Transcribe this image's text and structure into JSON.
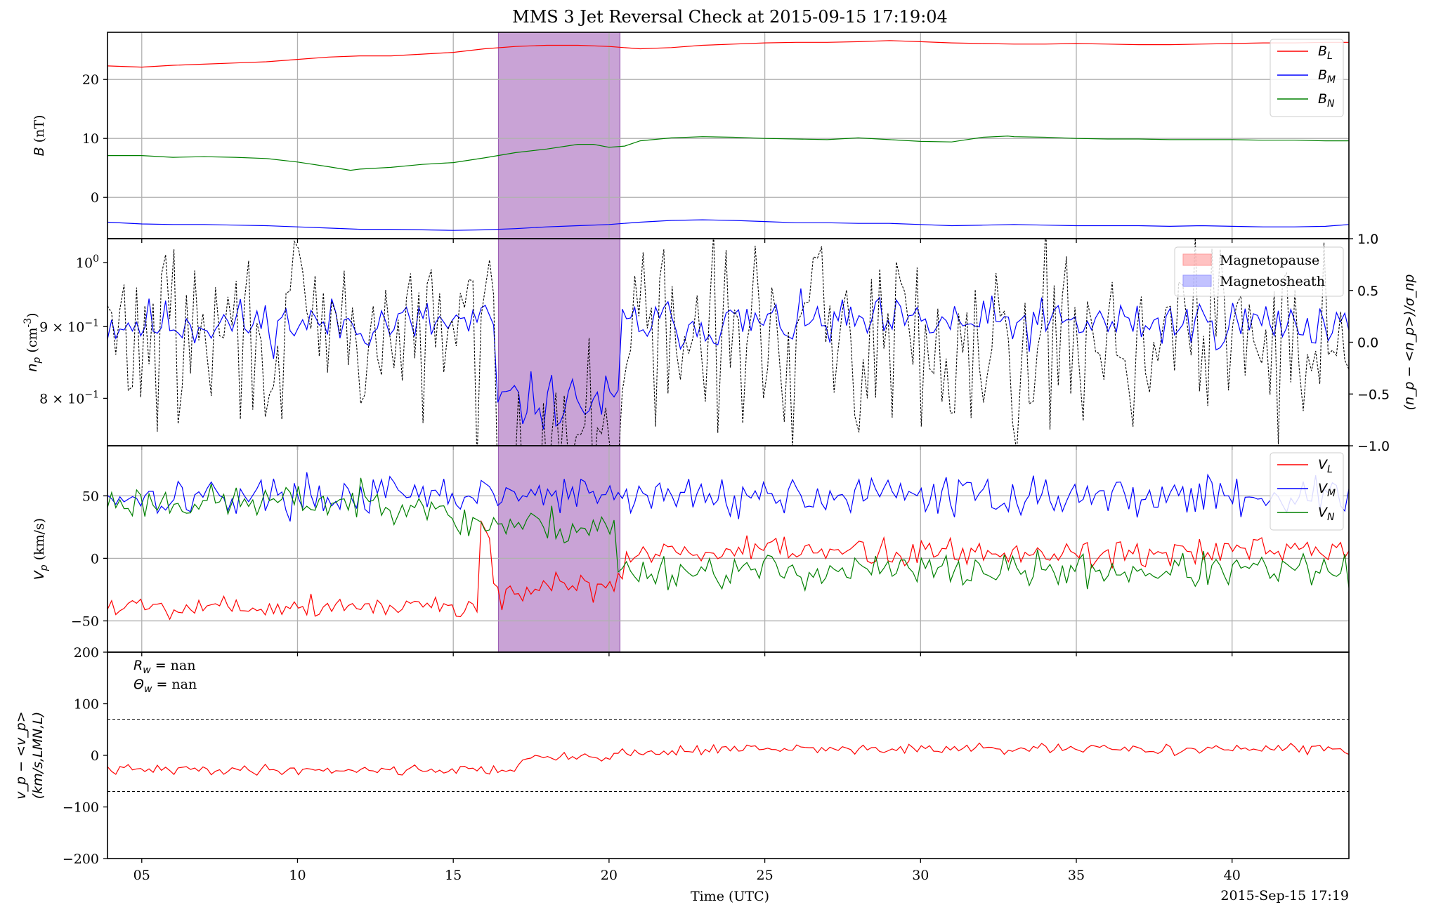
{
  "title": "MMS 3 Jet Reversal Check at 2015-09-15 17:19:04",
  "colors": {
    "red": "#ff0000",
    "blue": "#0000ff",
    "green": "#008000",
    "black": "#000000",
    "grid": "#b0b0b0",
    "span_fill": "#c9a3d6",
    "span_edge": "#9c5fb5"
  },
  "xaxis": {
    "label": "Time (UTC)",
    "tick_labels": [
      "05",
      "10",
      "15",
      "20",
      "25",
      "30",
      "35",
      "40"
    ],
    "tick_values": [
      5,
      10,
      15,
      20,
      25,
      30,
      35,
      40
    ],
    "range_seconds": [
      3.9,
      43.75
    ],
    "offset_label": "2015-Sep-15 17:19"
  },
  "highlight_span": {
    "start_seconds": 16.45,
    "end_seconds": 20.35
  },
  "chart_data": [
    {
      "type": "line",
      "panel": "B",
      "ylabel_sym": "B",
      "ylabel_unit": " (nT)",
      "ylim": [
        -7,
        28
      ],
      "yticks": [
        0,
        10,
        20
      ],
      "ytick_labels": [
        "0",
        "10",
        "20"
      ],
      "grid": true,
      "legend_placement": "upper right",
      "series": [
        {
          "name": "B_L",
          "label_main": "B",
          "label_sub": "L",
          "color": "#ff0000",
          "x": [
            3.9,
            5,
            6,
            7,
            8,
            9,
            10,
            11,
            12,
            13,
            14,
            15,
            16,
            17,
            18,
            19,
            20,
            21,
            22,
            23,
            24,
            25,
            26,
            27,
            28,
            29,
            30,
            31,
            32,
            33,
            34,
            35,
            36,
            37,
            38,
            39,
            40,
            41,
            42,
            43,
            43.75
          ],
          "y": [
            22.3,
            22.1,
            22.4,
            22.6,
            22.8,
            23.0,
            23.4,
            23.8,
            24.0,
            24.0,
            24.3,
            24.6,
            25.2,
            25.6,
            25.8,
            25.8,
            25.6,
            25.2,
            25.4,
            25.8,
            26.0,
            26.2,
            26.3,
            26.3,
            26.4,
            26.6,
            26.4,
            26.2,
            26.1,
            26.0,
            26.0,
            26.1,
            26.0,
            25.9,
            25.9,
            26.0,
            26.1,
            26.2,
            26.2,
            26.3,
            26.3
          ]
        },
        {
          "name": "B_M",
          "label_main": "B",
          "label_sub": "M",
          "color": "#0000ff",
          "x": [
            3.9,
            5,
            6,
            7,
            8,
            9,
            10,
            11,
            12,
            13,
            14,
            15,
            16,
            17,
            18,
            19,
            20,
            21,
            22,
            23,
            24,
            25,
            26,
            27,
            28,
            29,
            30,
            31,
            32,
            33,
            34,
            35,
            36,
            37,
            38,
            39,
            40,
            41,
            42,
            43,
            43.75
          ],
          "y": [
            -4.2,
            -4.5,
            -4.6,
            -4.6,
            -4.7,
            -4.8,
            -5.0,
            -5.2,
            -5.4,
            -5.4,
            -5.5,
            -5.6,
            -5.5,
            -5.3,
            -5.0,
            -4.8,
            -4.6,
            -4.2,
            -3.9,
            -3.8,
            -3.9,
            -4.1,
            -4.3,
            -4.3,
            -4.4,
            -4.4,
            -4.6,
            -4.8,
            -4.7,
            -4.6,
            -4.7,
            -4.8,
            -4.8,
            -4.8,
            -4.9,
            -4.8,
            -4.9,
            -5.0,
            -5.0,
            -4.9,
            -4.6
          ]
        },
        {
          "name": "B_N",
          "label_main": "B",
          "label_sub": "N",
          "color": "#008000",
          "x": [
            3.9,
            5,
            6,
            7,
            8,
            9,
            10,
            11,
            11.7,
            12,
            13,
            14,
            15,
            16,
            17,
            18,
            19,
            19.5,
            20,
            20.5,
            21,
            22,
            23,
            24,
            25,
            26,
            27,
            28,
            29,
            30,
            31,
            32,
            32.8,
            33,
            34,
            35,
            36,
            37,
            38,
            39,
            40,
            41,
            42,
            43,
            43.75
          ],
          "y": [
            7.1,
            7.1,
            6.8,
            6.9,
            6.8,
            6.6,
            6.0,
            5.2,
            4.6,
            4.8,
            5.1,
            5.6,
            5.9,
            6.7,
            7.6,
            8.2,
            9.0,
            9.0,
            8.5,
            8.7,
            9.6,
            10.1,
            10.3,
            10.2,
            10.0,
            9.9,
            9.8,
            10.1,
            9.8,
            9.5,
            9.4,
            10.2,
            10.4,
            10.3,
            10.2,
            10.0,
            9.9,
            9.9,
            9.8,
            9.8,
            9.8,
            9.7,
            9.7,
            9.6,
            9.6
          ]
        }
      ]
    },
    {
      "type": "line",
      "panel": "np",
      "ylabel_sym": "n",
      "ylabel_sub": "p",
      "ylabel_unit": " (cm",
      "ylabel_sup": "-3",
      "ylabel_close": ")",
      "yscale": "log",
      "ylim": [
        0.74,
        1.04
      ],
      "yticks": [
        0.8,
        0.9,
        1.0
      ],
      "ytick_labels": [
        {
          "mantissa": "8 × 10",
          "exp": "−1"
        },
        {
          "mantissa": "9 × 10",
          "exp": "−1"
        },
        {
          "mantissa": "10",
          "exp": "0"
        }
      ],
      "right_axis": {
        "label": "(n_p − <n_p>)/σ_np",
        "ylim": [
          -1.0,
          1.0
        ],
        "yticks": [
          -1.0,
          -0.5,
          0.0,
          0.5,
          1.0
        ],
        "ytick_labels": [
          "−1.0",
          "−0.5",
          "0.0",
          "0.5",
          "1.0"
        ]
      },
      "legend_placement": "upper right",
      "legend": [
        {
          "label": "Magnetopause",
          "color": "#ff9999"
        },
        {
          "label": "Magnetosheath",
          "color": "#9999ff"
        }
      ],
      "series": [
        {
          "name": "n_p",
          "color": "#0000ff",
          "style": "solid",
          "n": 300,
          "seed": 11,
          "mean": 0.905,
          "jitter": 0.035,
          "dip": [
            16.3,
            20.3,
            0.795
          ]
        },
        {
          "name": "normalized n_p",
          "color": "#000000",
          "style": "dashed",
          "n": 300,
          "seed": 29,
          "mean": 0.05,
          "jitter": 0.85,
          "dip": [
            16.3,
            20.3,
            -0.9
          ],
          "axis": "right"
        }
      ]
    },
    {
      "type": "line",
      "panel": "Vp",
      "ylabel_sym": "V",
      "ylabel_sub": "p",
      "ylabel_unit": " (km/s)",
      "ylim": [
        -75,
        90
      ],
      "yticks": [
        -50,
        0,
        50
      ],
      "ytick_labels": [
        "−50",
        "0",
        "50"
      ],
      "grid": true,
      "legend_placement": "upper right",
      "series": [
        {
          "name": "V_L",
          "label_main": "V",
          "label_sub": "L",
          "color": "#ff0000",
          "n": 300,
          "seed": 5,
          "segments": [
            [
              3.9,
              15.8,
              -38,
              9
            ],
            [
              15.8,
              16.2,
              25,
              10
            ],
            [
              16.2,
              20.5,
              -30,
              12,
              10
            ],
            [
              20.5,
              43.75,
              5,
              11
            ]
          ]
        },
        {
          "name": "V_M",
          "label_main": "V",
          "label_sub": "M",
          "color": "#0000ff",
          "n": 300,
          "seed": 17,
          "segments": [
            [
              3.9,
              43.75,
              50,
              14
            ]
          ]
        },
        {
          "name": "V_N",
          "label_main": "V",
          "label_sub": "N",
          "color": "#008000",
          "n": 300,
          "seed": 23,
          "segments": [
            [
              3.9,
              14.5,
              45,
              13
            ],
            [
              14.5,
              20.2,
              30,
              15,
              -6
            ],
            [
              20.2,
              43.75,
              -10,
              13
            ]
          ]
        }
      ]
    },
    {
      "type": "line",
      "panel": "dvp",
      "ylabel_line1": "v_p − <v_p>",
      "ylabel_line2": "(km/s,LMN,L)",
      "ylim": [
        -200,
        200
      ],
      "yticks": [
        -200,
        -100,
        0,
        100,
        200
      ],
      "ytick_labels": [
        "−200",
        "−100",
        "0",
        "100",
        "200"
      ],
      "hlines": [
        70,
        -70
      ],
      "annotations": [
        {
          "sym": "R",
          "sub": "w",
          "text": " = nan"
        },
        {
          "sym": "Θ",
          "sub": "w",
          "text": " = nan"
        }
      ],
      "series": [
        {
          "name": "v_p − <v_p>",
          "color": "#ff0000",
          "n": 300,
          "seed": 41,
          "segments": [
            [
              3.9,
              17.0,
              -28,
              9
            ],
            [
              17.0,
              24.0,
              -10,
              10,
              25
            ],
            [
              24.0,
              43.75,
              12,
              9
            ]
          ]
        }
      ]
    }
  ]
}
